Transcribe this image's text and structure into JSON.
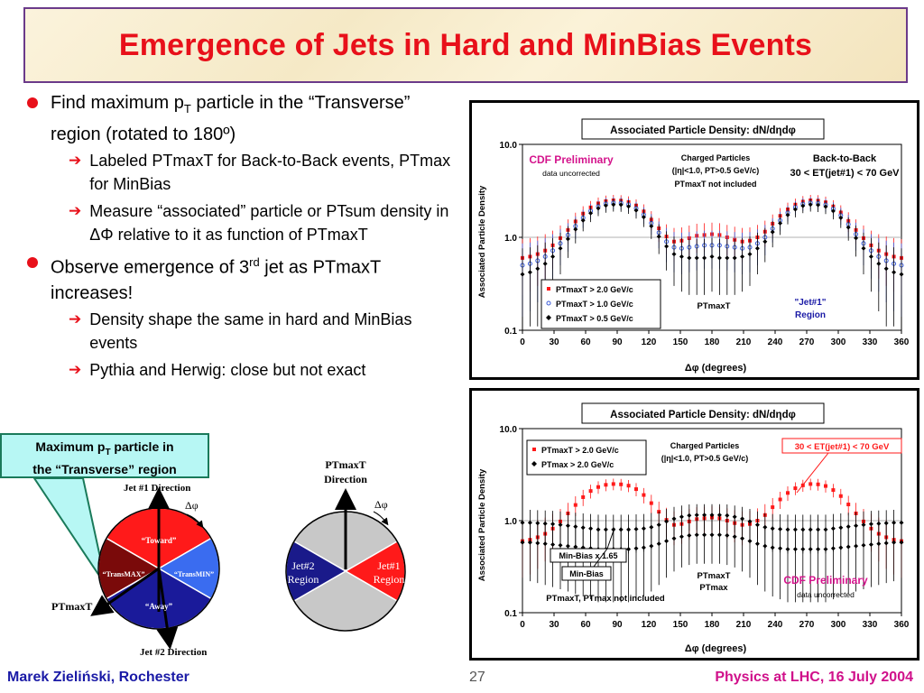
{
  "title": "Emergence of Jets in Hard and MinBias Events",
  "bullets": [
    {
      "text_a": "Find maximum p",
      "sub": "T",
      "text_b": " particle in the “Transverse” region (rotated to 180º)",
      "subs": [
        "Labeled PTmaxT for Back-to-Back events, PTmax for MinBias",
        "Measure “associated” particle or PTsum density in ΔΦ relative to it as function of PTmaxT"
      ]
    },
    {
      "text_a": "Observe emergence of 3",
      "sup": "rd",
      "text_b": " jet as PTmaxT increases!",
      "subs": [
        "Density shape the same in hard and MinBias events",
        "Pythia and Herwig: close but not exact"
      ]
    }
  ],
  "callout": {
    "line1_a": "Maximum p",
    "line1_sub": "T",
    "line1_b": " particle in",
    "line2": "the “Transverse” region"
  },
  "diagram1": {
    "jet1_label": "Jet #1 Direction",
    "jet2_label": "Jet #2 Direction",
    "dphi": "Δφ",
    "ptmaxt": "PTmaxT",
    "regions": {
      "toward": "“Toward”",
      "transmax": "“TransMAX”",
      "transmin": "“TransMIN”",
      "away": "“Away”"
    },
    "colors": {
      "toward": "#ff1a1a",
      "transmax": "#7a0a0a",
      "transmin": "#3a6cf0",
      "away": "#1a1a9a"
    }
  },
  "diagram2": {
    "ptmaxt_dir_l1": "PTmaxT",
    "ptmaxt_dir_l2": "Direction",
    "dphi": "Δφ",
    "jet2": [
      "Jet#2",
      "Region"
    ],
    "jet1": [
      "Jet#1",
      "Region"
    ],
    "colors": {
      "grey": "#c8c8c8",
      "jet2": "#1a1a8a",
      "jet1": "#ff1a1a"
    }
  },
  "chart_data": [
    {
      "type": "scatter",
      "title": "Associated Particle Density: dN/dηdφ",
      "xlabel": "Δφ  (degrees)",
      "ylabel": "Associated Particle Density",
      "xlim": [
        0,
        360
      ],
      "ylim": [
        0.1,
        10.0
      ],
      "yscale": "log",
      "xticks": [
        "0",
        "30",
        "60",
        "90",
        "120",
        "150",
        "180",
        "210",
        "240",
        "270",
        "300",
        "330",
        "360"
      ],
      "yticks": [
        "0.1",
        "1.0",
        "10.0"
      ],
      "annotations": {
        "cdf": "CDF Preliminary",
        "cdf_sub": "data uncorrected",
        "charged_l1": "Charged Particles",
        "charged_l2": "(|η|<1.0, PT>0.5 GeV/c)",
        "charged_l3": "PTmaxT not included",
        "btb_l1": "Back-to-Back",
        "btb_l2": "30 < ET(jet#1) < 70 GeV",
        "ptmaxt": "PTmaxT",
        "jet1_l1": "\"Jet#1\"",
        "jet1_l2": "Region"
      },
      "legend": "bottom-left",
      "x": [
        0,
        7.2,
        14.4,
        21.6,
        28.8,
        36,
        43.2,
        50.4,
        57.6,
        64.8,
        72,
        79.2,
        86.4,
        93.6,
        100.8,
        108,
        115.2,
        122.4,
        129.6,
        136.8,
        144,
        151.2,
        158.4,
        165.6,
        172.8,
        180,
        187.2,
        194.4,
        201.6,
        208.8,
        216,
        223.2,
        230.4,
        237.6,
        244.8,
        252,
        259.2,
        266.4,
        273.6,
        280.8,
        288,
        295.2,
        302.4,
        309.6,
        316.8,
        324,
        331.2,
        338.4,
        345.6,
        352.8,
        360
      ],
      "series": [
        {
          "name": "PTmaxT > 2.0 GeV/c",
          "color": "#ff1a1a",
          "marker": "square",
          "values": [
            0.6,
            0.62,
            0.66,
            0.72,
            0.82,
            0.98,
            1.2,
            1.48,
            1.8,
            2.1,
            2.32,
            2.45,
            2.5,
            2.48,
            2.4,
            2.2,
            1.9,
            1.55,
            1.25,
            1.02,
            0.9,
            0.92,
            0.98,
            1.04,
            1.06,
            1.08,
            1.06,
            1.0,
            0.94,
            0.9,
            0.92,
            1.0,
            1.15,
            1.4,
            1.7,
            2.0,
            2.25,
            2.42,
            2.5,
            2.48,
            2.38,
            2.15,
            1.85,
            1.5,
            1.2,
            0.98,
            0.82,
            0.72,
            0.66,
            0.62,
            0.6
          ]
        },
        {
          "name": "PTmaxT > 1.0 GeV/c",
          "color": "#3a5ad8",
          "marker": "circle",
          "values": [
            0.5,
            0.52,
            0.56,
            0.62,
            0.72,
            0.86,
            1.06,
            1.32,
            1.62,
            1.92,
            2.15,
            2.3,
            2.35,
            2.34,
            2.25,
            2.05,
            1.75,
            1.42,
            1.12,
            0.9,
            0.78,
            0.76,
            0.78,
            0.8,
            0.82,
            0.82,
            0.82,
            0.8,
            0.78,
            0.76,
            0.78,
            0.86,
            1.0,
            1.24,
            1.52,
            1.84,
            2.1,
            2.28,
            2.35,
            2.33,
            2.24,
            2.02,
            1.72,
            1.38,
            1.08,
            0.86,
            0.72,
            0.62,
            0.56,
            0.52,
            0.5
          ]
        },
        {
          "name": "PTmaxT > 0.5 GeV/c",
          "color": "#000000",
          "marker": "diamond",
          "values": [
            0.4,
            0.42,
            0.46,
            0.52,
            0.62,
            0.76,
            0.96,
            1.22,
            1.52,
            1.82,
            2.05,
            2.2,
            2.25,
            2.24,
            2.15,
            1.95,
            1.65,
            1.32,
            1.02,
            0.8,
            0.66,
            0.62,
            0.6,
            0.6,
            0.6,
            0.62,
            0.6,
            0.6,
            0.6,
            0.62,
            0.66,
            0.76,
            0.9,
            1.14,
            1.42,
            1.74,
            2.0,
            2.18,
            2.25,
            2.23,
            2.14,
            1.92,
            1.62,
            1.28,
            0.98,
            0.76,
            0.62,
            0.52,
            0.46,
            0.42,
            0.4
          ]
        }
      ]
    },
    {
      "type": "scatter",
      "title": "Associated Particle Density: dN/dηdφ",
      "xlabel": "Δφ  (degrees)",
      "ylabel": "Associated Particle Density",
      "xlim": [
        0,
        360
      ],
      "ylim": [
        0.1,
        10.0
      ],
      "yscale": "log",
      "xticks": [
        "0",
        "30",
        "60",
        "90",
        "120",
        "150",
        "180",
        "210",
        "240",
        "270",
        "300",
        "330",
        "360"
      ],
      "yticks": [
        "0.1",
        "1.0",
        "10.0"
      ],
      "annotations": {
        "charged_l1": "Charged Particles",
        "charged_l2": "(|η|<1.0, PT>0.5 GeV/c)",
        "et_box": "30 < ET(jet#1) < 70 GeV",
        "minbias165": "Min-Bias x 1.65",
        "minbias": "Min-Bias",
        "ptmaxt_l1": "PTmaxT",
        "ptmaxt_l2": "PTmax",
        "not_included": "PTmaxT, PTmax not included",
        "cdf": "CDF Preliminary",
        "cdf_sub": "data uncorrected"
      },
      "legend": "top-left",
      "x": [
        0,
        7.2,
        14.4,
        21.6,
        28.8,
        36,
        43.2,
        50.4,
        57.6,
        64.8,
        72,
        79.2,
        86.4,
        93.6,
        100.8,
        108,
        115.2,
        122.4,
        129.6,
        136.8,
        144,
        151.2,
        158.4,
        165.6,
        172.8,
        180,
        187.2,
        194.4,
        201.6,
        208.8,
        216,
        223.2,
        230.4,
        237.6,
        244.8,
        252,
        259.2,
        266.4,
        273.6,
        280.8,
        288,
        295.2,
        302.4,
        309.6,
        316.8,
        324,
        331.2,
        338.4,
        345.6,
        352.8,
        360
      ],
      "series": [
        {
          "name": "PTmaxT > 2.0 GeV/c",
          "color": "#ff1a1a",
          "marker": "square",
          "values": [
            0.6,
            0.62,
            0.66,
            0.72,
            0.82,
            0.98,
            1.2,
            1.48,
            1.8,
            2.1,
            2.32,
            2.45,
            2.5,
            2.48,
            2.4,
            2.2,
            1.9,
            1.55,
            1.25,
            1.02,
            0.9,
            0.92,
            0.98,
            1.04,
            1.06,
            1.08,
            1.06,
            1.0,
            0.94,
            0.9,
            0.92,
            1.0,
            1.15,
            1.4,
            1.7,
            2.0,
            2.25,
            2.42,
            2.5,
            2.48,
            2.38,
            2.15,
            1.85,
            1.5,
            1.2,
            0.98,
            0.82,
            0.72,
            0.66,
            0.62,
            0.6
          ]
        },
        {
          "name": "PTmax > 2.0 GeV/c",
          "color": "#000000",
          "marker": "diamond",
          "values": [
            0.95,
            0.95,
            0.94,
            0.93,
            0.92,
            0.9,
            0.88,
            0.86,
            0.84,
            0.82,
            0.8,
            0.8,
            0.8,
            0.8,
            0.8,
            0.81,
            0.82,
            0.85,
            0.9,
            0.98,
            1.05,
            1.1,
            1.14,
            1.15,
            1.15,
            1.15,
            1.15,
            1.14,
            1.1,
            1.05,
            0.98,
            0.9,
            0.85,
            0.82,
            0.81,
            0.8,
            0.8,
            0.8,
            0.8,
            0.8,
            0.8,
            0.82,
            0.84,
            0.86,
            0.88,
            0.9,
            0.92,
            0.93,
            0.94,
            0.95,
            0.95
          ]
        },
        {
          "name": "Min-Bias",
          "color": "#000000",
          "marker": "diamond",
          "values": [
            0.58,
            0.58,
            0.57,
            0.56,
            0.55,
            0.54,
            0.53,
            0.52,
            0.51,
            0.5,
            0.49,
            0.49,
            0.49,
            0.49,
            0.49,
            0.5,
            0.51,
            0.53,
            0.56,
            0.6,
            0.64,
            0.67,
            0.69,
            0.7,
            0.7,
            0.7,
            0.7,
            0.69,
            0.67,
            0.64,
            0.6,
            0.56,
            0.53,
            0.51,
            0.5,
            0.49,
            0.49,
            0.49,
            0.49,
            0.49,
            0.49,
            0.5,
            0.51,
            0.52,
            0.53,
            0.54,
            0.55,
            0.56,
            0.57,
            0.58,
            0.58
          ]
        }
      ]
    }
  ],
  "footer": {
    "left": "Marek Zieliński, Rochester",
    "page": "27",
    "right": "Physics at LHC,  16 July 2004"
  }
}
